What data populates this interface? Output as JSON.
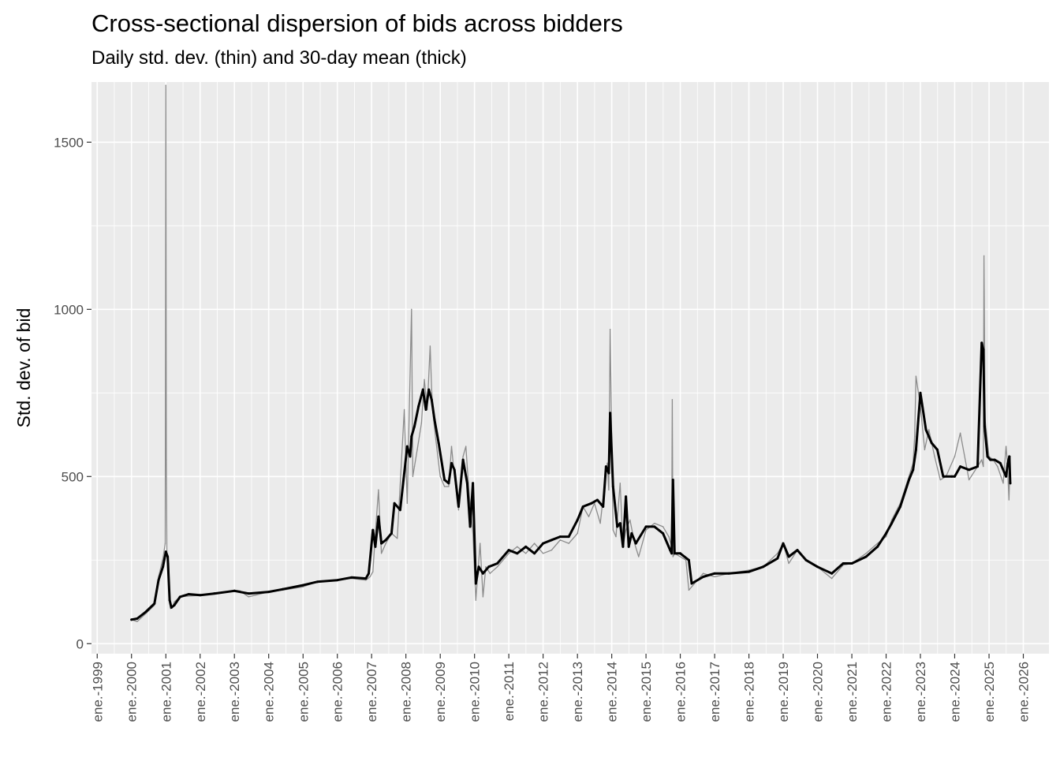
{
  "chart_data": {
    "type": "line",
    "title": "Cross-sectional dispersion of bids across bidders",
    "subtitle": "Daily std. dev. (thin) and 30-day mean (thick)",
    "xlabel": "",
    "ylabel": "Std. dev. of bid",
    "xlim": [
      "1998-11-01",
      "2026-10-01"
    ],
    "ylim": [
      -30,
      1680
    ],
    "x_ticks": [
      "1999-01-01",
      "2000-01-01",
      "2001-01-01",
      "2002-01-01",
      "2003-01-01",
      "2004-01-01",
      "2005-01-01",
      "2006-01-01",
      "2007-01-01",
      "2008-01-01",
      "2009-01-01",
      "2010-01-01",
      "2011-01-01",
      "2012-01-01",
      "2013-01-01",
      "2014-01-01",
      "2015-01-01",
      "2016-01-01",
      "2017-01-01",
      "2018-01-01",
      "2019-01-01",
      "2020-01-01",
      "2021-01-01",
      "2022-01-01",
      "2023-01-01",
      "2024-01-01",
      "2025-01-01",
      "2026-01-01"
    ],
    "x_tick_labels": [
      "ene.-1999",
      "ene.-2000",
      "ene.-2001",
      "ene.-2002",
      "ene.-2003",
      "ene.-2004",
      "ene.-2005",
      "ene.-2006",
      "ene.-2007",
      "ene.-2008",
      "ene.-2009",
      "ene.-2010",
      "ene.-2011",
      "ene.-2012",
      "ene.-2013",
      "ene.-2014",
      "ene.-2015",
      "ene.-2016",
      "ene.-2017",
      "ene.-2018",
      "ene.-2019",
      "ene.-2020",
      "ene.-2021",
      "ene.-2022",
      "ene.-2023",
      "ene.-2024",
      "ene.-2025",
      "ene.-2026"
    ],
    "y_ticks": [
      0,
      500,
      1000,
      1500
    ],
    "y_tick_labels": [
      "0",
      "500",
      "1000",
      "1500"
    ],
    "grid": true,
    "legend": "none",
    "series": [
      {
        "style": "thin",
        "color": "#8c8c8c",
        "x": [
          "2000-01-01",
          "2000-03-01",
          "2000-06-01",
          "2000-09-01",
          "2000-10-15",
          "2000-12-01",
          "2000-12-25",
          "2001-01-01",
          "2001-01-06",
          "2001-01-12",
          "2001-02-01",
          "2001-02-10",
          "2001-02-20",
          "2001-03-10",
          "2001-04-01",
          "2001-06-01",
          "2002-01-01",
          "2002-06-01",
          "2003-01-01",
          "2003-03-01",
          "2003-06-01",
          "2004-01-01",
          "2004-06-01",
          "2005-01-01",
          "2005-06-01",
          "2006-01-01",
          "2006-06-01",
          "2006-11-01",
          "2006-12-15",
          "2007-01-15",
          "2007-02-15",
          "2007-03-15",
          "2007-04-15",
          "2007-06-01",
          "2007-08-01",
          "2007-10-01",
          "2007-12-15",
          "2008-01-15",
          "2008-03-01",
          "2008-03-15",
          "2008-04-01",
          "2008-05-01",
          "2008-06-15",
          "2008-07-15",
          "2008-08-15",
          "2008-09-15",
          "2008-10-01",
          "2008-10-15",
          "2008-11-15",
          "2009-01-01",
          "2009-02-15",
          "2009-04-01",
          "2009-05-01",
          "2009-06-01",
          "2009-07-15",
          "2009-09-01",
          "2009-10-01",
          "2009-11-01",
          "2009-12-15",
          "2010-01-15",
          "2010-03-01",
          "2010-04-01",
          "2010-05-01",
          "2010-06-15",
          "2010-09-01",
          "2011-01-01",
          "2011-04-01",
          "2011-07-01",
          "2011-10-01",
          "2012-01-01",
          "2012-04-01",
          "2012-07-01",
          "2012-10-01",
          "2013-01-01",
          "2013-03-01",
          "2013-05-01",
          "2013-07-01",
          "2013-09-01",
          "2013-10-15",
          "2013-11-15",
          "2013-12-01",
          "2013-12-15",
          "2014-01-15",
          "2014-02-15",
          "2014-04-01",
          "2014-05-01",
          "2014-06-01",
          "2014-07-15",
          "2014-09-01",
          "2014-10-15",
          "2015-01-01",
          "2015-04-01",
          "2015-07-01",
          "2015-09-01",
          "2015-10-01",
          "2015-10-08",
          "2015-10-15",
          "2015-11-01",
          "2016-01-01",
          "2016-03-01",
          "2016-04-01",
          "2016-06-01",
          "2016-09-01",
          "2017-01-01",
          "2017-06-01",
          "2018-01-01",
          "2018-06-01",
          "2018-11-01",
          "2019-01-01",
          "2019-03-01",
          "2019-06-01",
          "2019-09-01",
          "2020-01-01",
          "2020-06-01",
          "2020-10-01",
          "2021-01-01",
          "2021-06-01",
          "2021-10-01",
          "2022-01-01",
          "2022-03-01",
          "2022-06-01",
          "2022-09-01",
          "2022-10-15",
          "2022-11-01",
          "2022-11-15",
          "2023-01-01",
          "2023-02-15",
          "2023-04-01",
          "2023-06-01",
          "2023-08-01",
          "2023-10-01",
          "2024-01-01",
          "2024-03-01",
          "2024-06-01",
          "2024-09-01",
          "2024-10-15",
          "2024-11-01",
          "2024-11-08",
          "2024-11-20",
          "2025-01-01",
          "2025-02-15",
          "2025-04-01",
          "2025-06-01",
          "2025-07-01",
          "2025-07-15",
          "2025-08-01",
          "2025-08-15"
        ],
        "values": [
          72,
          66,
          90,
          115,
          200,
          255,
          300,
          1670,
          550,
          270,
          240,
          120,
          105,
          108,
          125,
          140,
          145,
          150,
          160,
          158,
          140,
          155,
          160,
          170,
          185,
          190,
          195,
          190,
          200,
          215,
          350,
          460,
          270,
          300,
          330,
          315,
          700,
          420,
          1000,
          500,
          530,
          580,
          660,
          790,
          700,
          890,
          760,
          690,
          610,
          500,
          470,
          470,
          590,
          500,
          400,
          560,
          590,
          460,
          330,
          130,
          300,
          140,
          230,
          210,
          230,
          270,
          290,
          270,
          300,
          270,
          280,
          310,
          300,
          330,
          410,
          380,
          420,
          360,
          470,
          540,
          460,
          940,
          340,
          320,
          480,
          290,
          340,
          370,
          300,
          260,
          340,
          360,
          350,
          320,
          290,
          730,
          260,
          270,
          260,
          250,
          160,
          180,
          210,
          200,
          210,
          220,
          230,
          270,
          300,
          240,
          280,
          250,
          230,
          195,
          235,
          240,
          270,
          300,
          320,
          370,
          420,
          500,
          540,
          620,
          800,
          710,
          580,
          640,
          560,
          490,
          500,
          560,
          630,
          490,
          530,
          550,
          530,
          1160,
          670,
          560,
          550,
          530,
          480,
          590,
          540,
          430,
          560
        ]
      },
      {
        "style": "thick",
        "color": "#000000",
        "x": [
          "2000-01-01",
          "2000-03-01",
          "2000-06-01",
          "2000-09-01",
          "2000-10-15",
          "2000-12-01",
          "2001-01-01",
          "2001-01-20",
          "2001-02-10",
          "2001-03-01",
          "2001-04-01",
          "2001-06-01",
          "2001-09-01",
          "2002-01-01",
          "2002-06-01",
          "2003-01-01",
          "2003-06-01",
          "2004-01-01",
          "2004-06-01",
          "2005-01-01",
          "2005-06-01",
          "2006-01-01",
          "2006-06-01",
          "2006-11-01",
          "2006-12-01",
          "2007-01-15",
          "2007-02-10",
          "2007-03-15",
          "2007-04-15",
          "2007-06-01",
          "2007-08-01",
          "2007-09-01",
          "2007-11-01",
          "2008-01-15",
          "2008-02-15",
          "2008-03-01",
          "2008-04-01",
          "2008-05-15",
          "2008-07-01",
          "2008-08-01",
          "2008-09-01",
          "2008-10-01",
          "2008-11-01",
          "2008-12-15",
          "2009-02-15",
          "2009-04-01",
          "2009-05-01",
          "2009-06-01",
          "2009-07-15",
          "2009-09-01",
          "2009-10-15",
          "2009-11-15",
          "2009-12-15",
          "2010-01-15",
          "2010-02-15",
          "2010-04-01",
          "2010-06-01",
          "2010-09-01",
          "2011-01-01",
          "2011-04-01",
          "2011-07-01",
          "2011-10-01",
          "2012-01-01",
          "2012-04-01",
          "2012-07-01",
          "2012-10-01",
          "2013-01-01",
          "2013-03-01",
          "2013-06-01",
          "2013-08-01",
          "2013-10-01",
          "2013-11-01",
          "2013-12-01",
          "2013-12-15",
          "2014-01-15",
          "2014-03-01",
          "2014-04-01",
          "2014-05-01",
          "2014-06-01",
          "2014-07-01",
          "2014-08-01",
          "2014-09-15",
          "2015-01-01",
          "2015-04-01",
          "2015-07-01",
          "2015-09-15",
          "2015-10-01",
          "2015-10-15",
          "2015-11-01",
          "2016-01-01",
          "2016-04-01",
          "2016-05-01",
          "2016-09-01",
          "2017-01-01",
          "2017-06-01",
          "2018-01-01",
          "2018-06-01",
          "2018-11-01",
          "2019-01-01",
          "2019-03-01",
          "2019-06-01",
          "2019-09-01",
          "2020-01-01",
          "2020-06-01",
          "2020-10-01",
          "2021-01-01",
          "2021-06-01",
          "2021-10-01",
          "2022-01-01",
          "2022-03-01",
          "2022-06-01",
          "2022-09-01",
          "2022-10-15",
          "2022-11-15",
          "2023-01-01",
          "2023-03-01",
          "2023-05-01",
          "2023-07-01",
          "2023-09-01",
          "2023-12-01",
          "2024-01-01",
          "2024-03-01",
          "2024-06-01",
          "2024-09-01",
          "2024-10-15",
          "2024-11-01",
          "2024-11-15",
          "2024-12-15",
          "2025-01-15",
          "2025-03-01",
          "2025-05-01",
          "2025-07-01",
          "2025-07-20",
          "2025-08-05",
          "2025-08-15"
        ],
        "values": [
          72,
          75,
          95,
          120,
          190,
          230,
          275,
          260,
          130,
          108,
          115,
          140,
          148,
          145,
          150,
          158,
          150,
          155,
          163,
          175,
          185,
          190,
          198,
          195,
          210,
          340,
          290,
          380,
          300,
          310,
          330,
          420,
          400,
          590,
          560,
          620,
          650,
          710,
          760,
          700,
          760,
          730,
          670,
          600,
          490,
          480,
          540,
          520,
          410,
          550,
          480,
          350,
          480,
          180,
          230,
          210,
          230,
          240,
          280,
          270,
          290,
          270,
          300,
          310,
          320,
          320,
          370,
          410,
          420,
          430,
          410,
          530,
          510,
          690,
          470,
          350,
          360,
          290,
          440,
          290,
          330,
          300,
          350,
          350,
          330,
          280,
          270,
          490,
          270,
          270,
          250,
          180,
          200,
          210,
          210,
          215,
          230,
          255,
          300,
          260,
          280,
          250,
          230,
          210,
          240,
          240,
          260,
          290,
          330,
          360,
          410,
          490,
          520,
          580,
          750,
          640,
          600,
          580,
          500,
          500,
          500,
          530,
          520,
          530,
          900,
          880,
          650,
          560,
          550,
          550,
          540,
          500,
          540,
          560,
          480
        ]
      }
    ]
  }
}
